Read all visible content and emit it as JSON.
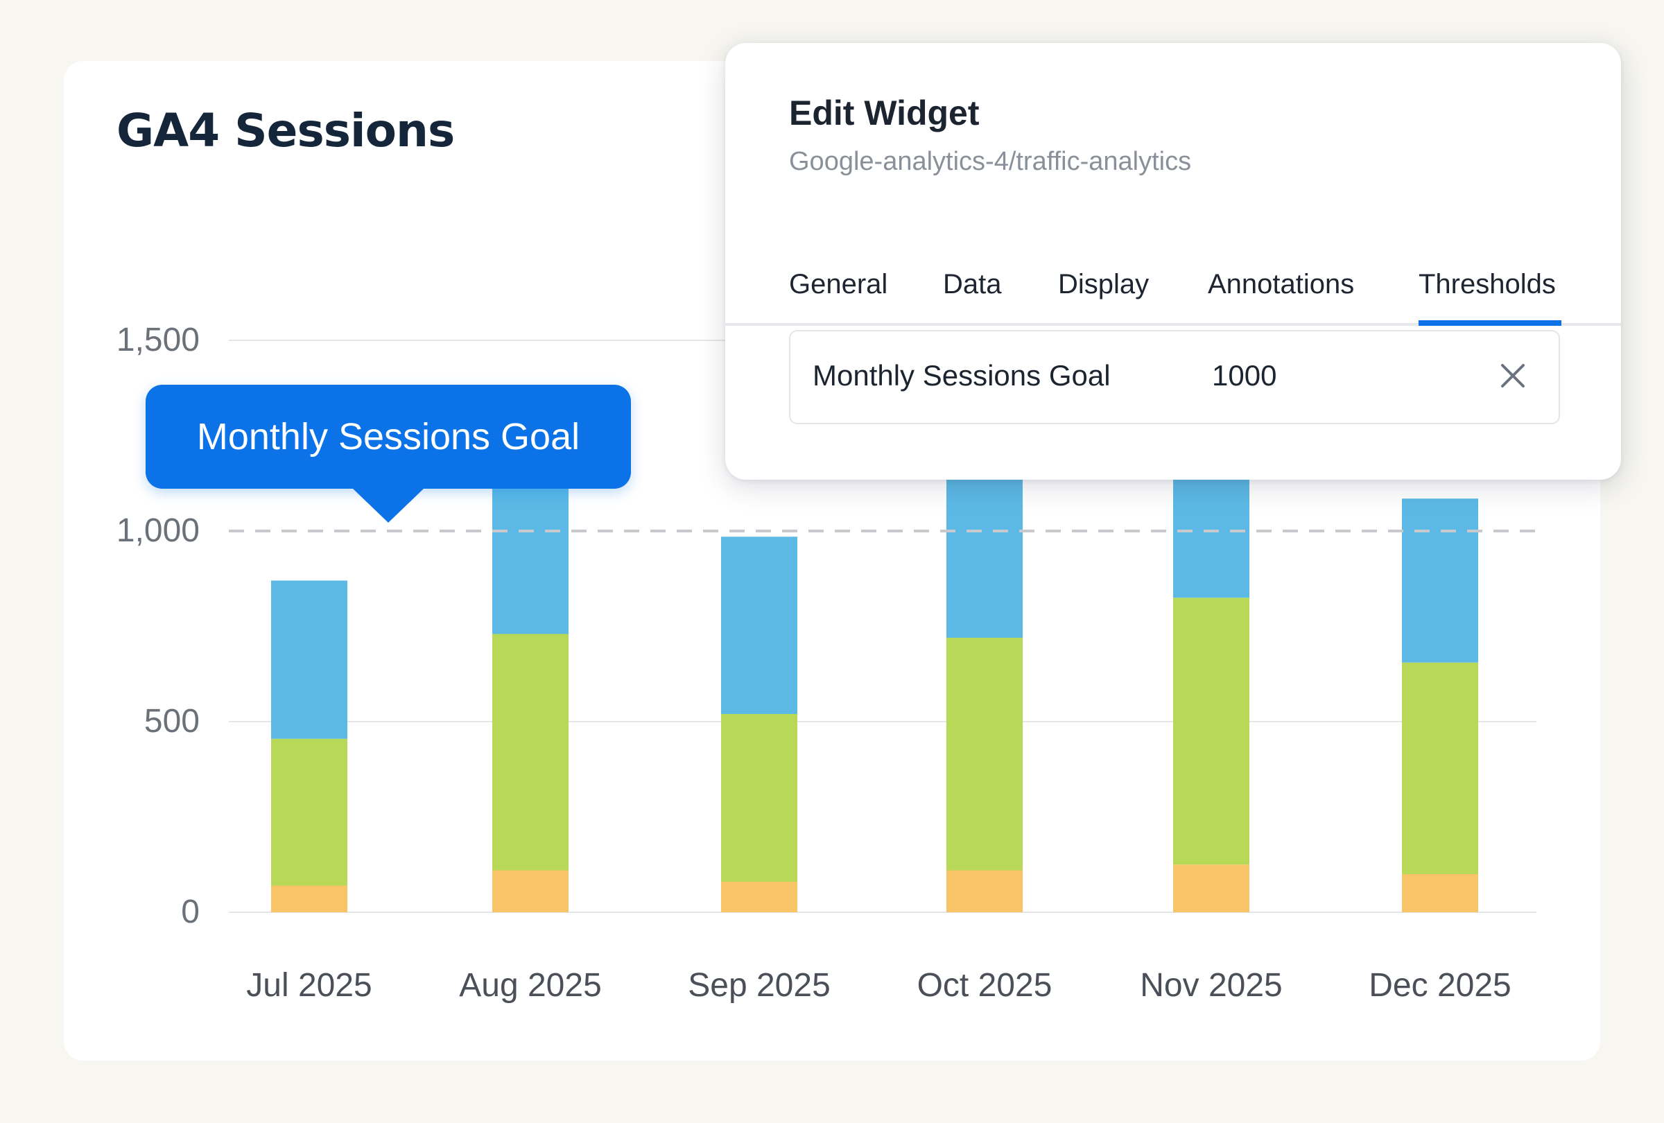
{
  "widget": {
    "title": "GA4 Sessions"
  },
  "chart_data": {
    "type": "bar",
    "stacked": true,
    "categories": [
      "Jul 2025",
      "Aug 2025",
      "Sep 2025",
      "Oct 2025",
      "Nov 2025",
      "Dec 2025"
    ],
    "series": [
      {
        "color": "#f9c367",
        "values": [
          70,
          110,
          80,
          110,
          125,
          100
        ]
      },
      {
        "color": "#b7d957",
        "values": [
          385,
          620,
          440,
          610,
          700,
          555
        ]
      },
      {
        "color": "#5cb9e5",
        "values": [
          415,
          400,
          465,
          420,
          310,
          430
        ]
      }
    ],
    "ylim": [
      0,
      1500
    ],
    "yticks": [
      {
        "value": 0,
        "label": "0"
      },
      {
        "value": 500,
        "label": "500"
      },
      {
        "value": 1000,
        "label": "1,000"
      },
      {
        "value": 1500,
        "label": "1,500"
      }
    ],
    "grid": true,
    "threshold": {
      "value": 1000,
      "label": "Monthly Sessions Goal"
    }
  },
  "panel": {
    "title": "Edit Widget",
    "subtitle": "Google-analytics-4/traffic-analytics",
    "tabs": [
      {
        "label": "General"
      },
      {
        "label": "Data"
      },
      {
        "label": "Display"
      },
      {
        "label": "Annotations"
      },
      {
        "label": "Thresholds",
        "active": true
      }
    ],
    "threshold_row": {
      "name": "Monthly Sessions Goal",
      "value": "1000"
    },
    "accent_color": "#0b72e7"
  }
}
